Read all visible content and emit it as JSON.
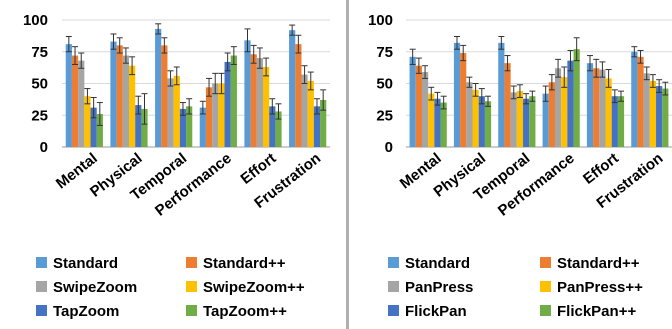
{
  "chart_data": [
    {
      "type": "bar",
      "categories": [
        "Mental",
        "Physical",
        "Temporal",
        "Performance",
        "Effort",
        "Frustration"
      ],
      "ylim": [
        0,
        100
      ],
      "yticks": [
        "0",
        "25",
        "50",
        "75",
        "100"
      ],
      "grid": "horizontal",
      "legend_position": "bottom",
      "series": [
        {
          "name": "Standard",
          "color": "#5b9bd5",
          "values": [
            81,
            83,
            93,
            31,
            84,
            92
          ],
          "errors": [
            6,
            6,
            4,
            5,
            9,
            4
          ]
        },
        {
          "name": "Standard++",
          "color": "#ed7d31",
          "values": [
            72,
            80,
            80,
            47,
            73,
            81
          ],
          "errors": [
            7,
            6,
            6,
            7,
            7,
            7
          ]
        },
        {
          "name": "SwipeZoom",
          "color": "#a5a5a5",
          "values": [
            68,
            72,
            54,
            50,
            70,
            57
          ],
          "errors": [
            6,
            6,
            6,
            8,
            8,
            7
          ]
        },
        {
          "name": "SwipeZoom++",
          "color": "#ffc000",
          "values": [
            40,
            64,
            56,
            50,
            63,
            52
          ],
          "errors": [
            6,
            7,
            7,
            8,
            7,
            7
          ]
        },
        {
          "name": "TapZoom",
          "color": "#4472c4",
          "values": [
            31,
            33,
            30,
            67,
            32,
            32
          ],
          "errors": [
            8,
            7,
            5,
            7,
            6,
            6
          ]
        },
        {
          "name": "TapZoom++",
          "color": "#70ad47",
          "values": [
            26,
            30,
            32,
            72,
            28,
            37
          ],
          "errors": [
            9,
            12,
            6,
            7,
            6,
            8
          ]
        }
      ]
    },
    {
      "type": "bar",
      "categories": [
        "Mental",
        "Physical",
        "Temporal",
        "Performance",
        "Effort",
        "Frustration"
      ],
      "ylim": [
        0,
        100
      ],
      "yticks": [
        "0",
        "25",
        "50",
        "75",
        "100"
      ],
      "grid": "horizontal",
      "legend_position": "bottom",
      "series": [
        {
          "name": "Standard",
          "color": "#5b9bd5",
          "values": [
            71,
            82,
            82,
            42,
            66,
            75
          ],
          "errors": [
            6,
            5,
            5,
            6,
            6,
            4
          ]
        },
        {
          "name": "Standard++",
          "color": "#ed7d31",
          "values": [
            64,
            74,
            66,
            51,
            62,
            71
          ],
          "errors": [
            6,
            6,
            6,
            6,
            7,
            5
          ]
        },
        {
          "name": "PanPress",
          "color": "#a5a5a5",
          "values": [
            59,
            51,
            43,
            62,
            61,
            58
          ],
          "errors": [
            5,
            4,
            5,
            7,
            6,
            5
          ]
        },
        {
          "name": "PanPress++",
          "color": "#ffc000",
          "values": [
            42,
            45,
            44,
            55,
            54,
            52
          ],
          "errors": [
            5,
            5,
            5,
            8,
            7,
            5
          ]
        },
        {
          "name": "FlickPan",
          "color": "#4472c4",
          "values": [
            38,
            40,
            38,
            68,
            40,
            48
          ],
          "errors": [
            5,
            6,
            4,
            8,
            5,
            5
          ]
        },
        {
          "name": "FlickPan++",
          "color": "#70ad47",
          "values": [
            35,
            36,
            40,
            77,
            40,
            46
          ],
          "errors": [
            5,
            4,
            4,
            9,
            4,
            5
          ]
        }
      ]
    }
  ]
}
